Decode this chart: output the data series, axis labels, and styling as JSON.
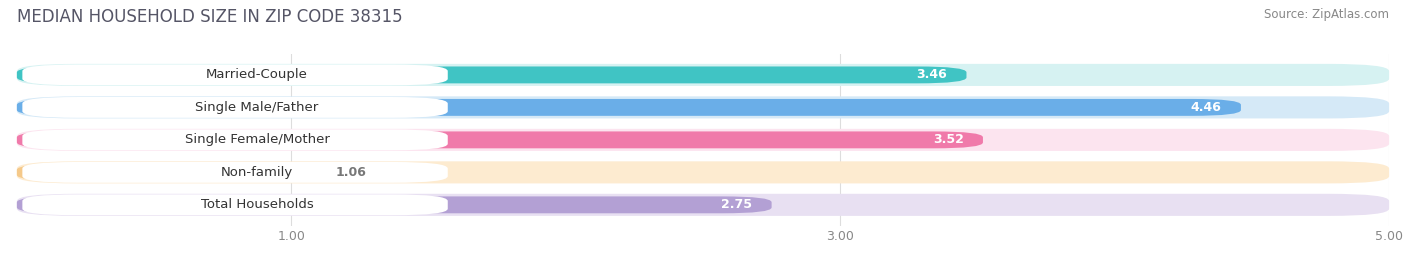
{
  "title": "MEDIAN HOUSEHOLD SIZE IN ZIP CODE 38315",
  "source": "Source: ZipAtlas.com",
  "categories": [
    "Married-Couple",
    "Single Male/Father",
    "Single Female/Mother",
    "Non-family",
    "Total Households"
  ],
  "values": [
    3.46,
    4.46,
    3.52,
    1.06,
    2.75
  ],
  "bar_colors": [
    "#40c4c4",
    "#6aaee8",
    "#f07aaa",
    "#f5c98a",
    "#b3a0d4"
  ],
  "bar_bg_colors": [
    "#d6f2f2",
    "#d5e9f7",
    "#fce4ef",
    "#fdebd0",
    "#e8e0f2"
  ],
  "value_colors": [
    "white",
    "white",
    "white",
    "#777777",
    "white"
  ],
  "xlim": [
    0,
    5.0
  ],
  "xticks": [
    1.0,
    3.0,
    5.0
  ],
  "xticklabels": [
    "1.00",
    "3.00",
    "5.00"
  ],
  "title_fontsize": 12,
  "source_fontsize": 8.5,
  "label_fontsize": 9.5,
  "value_fontsize": 9,
  "background_color": "#ffffff"
}
